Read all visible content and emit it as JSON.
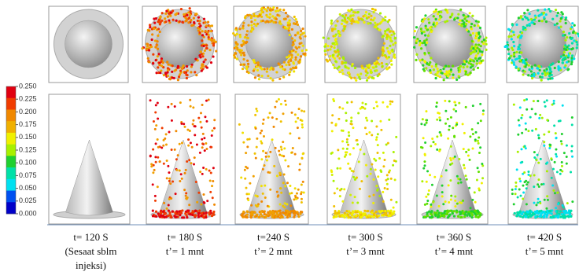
{
  "colorbar": {
    "ticks": [
      {
        "value": 0.25,
        "label": "0.250"
      },
      {
        "value": 0.225,
        "label": "0.225"
      },
      {
        "value": 0.2,
        "label": "0.200"
      },
      {
        "value": 0.175,
        "label": "0.175"
      },
      {
        "value": 0.15,
        "label": "0.150"
      },
      {
        "value": 0.125,
        "label": "0.125"
      },
      {
        "value": 0.1,
        "label": "0.100"
      },
      {
        "value": 0.075,
        "label": "0.075"
      },
      {
        "value": 0.05,
        "label": "0.050"
      },
      {
        "value": 0.025,
        "label": "0.025"
      },
      {
        "value": 0,
        "label": "0.000"
      }
    ],
    "range": [
      0,
      0.25
    ],
    "colors": [
      "#e00010",
      "#f03c00",
      "#f08800",
      "#f0b000",
      "#f0f000",
      "#a8f000",
      "#20d030",
      "#00e0a8",
      "#00e0f0",
      "#0050f0",
      "#0000c8"
    ]
  },
  "panels": [
    {
      "caption": [
        "t= 120 S",
        "(Sesaat sblm",
        "injeksi)"
      ],
      "dot_colors": []
    },
    {
      "caption": [
        "t= 180 S",
        "t’= 1 mnt"
      ],
      "dot_colors": [
        "#e00010",
        "#f03c00",
        "#f08800",
        "#f0a000"
      ]
    },
    {
      "caption": [
        "t=240 S",
        "t’= 2 mnt"
      ],
      "dot_colors": [
        "#f08800",
        "#f0a000",
        "#f0c000",
        "#f0e000"
      ]
    },
    {
      "caption": [
        "t= 300 S",
        "t’= 3 mnt"
      ],
      "dot_colors": [
        "#f0c000",
        "#f0f000",
        "#d0f000",
        "#a8f000"
      ]
    },
    {
      "caption": [
        "t= 360 S",
        "t’= 4 mnt"
      ],
      "dot_colors": [
        "#20d030",
        "#60e000",
        "#a8f000",
        "#f0f000"
      ]
    },
    {
      "caption": [
        "t= 420 S",
        "t’= 5 mnt"
      ],
      "dot_colors": [
        "#00e0f0",
        "#00e0a8",
        "#20d030",
        "#a8f000"
      ]
    }
  ]
}
